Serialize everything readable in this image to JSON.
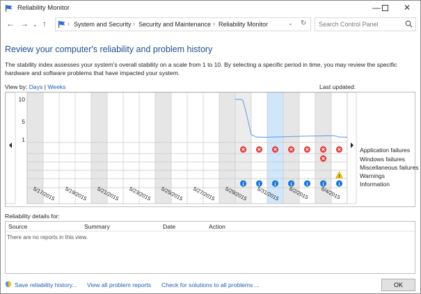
{
  "window": {
    "title": "Reliability Monitor",
    "controls": [
      "minimize",
      "maximize",
      "close"
    ]
  },
  "nav": {
    "breadcrumbs": [
      "System and Security",
      "Security and Maintenance",
      "Reliability Monitor"
    ],
    "search_placeholder": "Search Control Panel"
  },
  "page": {
    "heading": "Review your computer's reliability and problem history",
    "description": "The stability index assesses your system's overall stability on a scale from 1 to 10. By selecting a specific period in time, you may review the specific hardware and software problems that have impacted your system.",
    "view_by_label": "View by:",
    "view_days": "Days",
    "view_weeks": "Weeks",
    "view_separator": "|",
    "last_updated_label": "Last updated:"
  },
  "chart_data": {
    "type": "line",
    "y_ticks": [
      "10",
      "5",
      "1"
    ],
    "ylim": [
      1,
      10
    ],
    "dates": [
      "5/17/2015",
      "5/19/2015",
      "5/21/2015",
      "5/23/2015",
      "5/25/2015",
      "5/27/2015",
      "5/29/2015",
      "5/31/2015",
      "6/2/2015",
      "6/4/2015"
    ],
    "columns": 20,
    "selected_column": 15,
    "stability_index": [
      [
        13,
        10
      ],
      [
        13.4,
        10
      ],
      [
        13.5,
        9.6
      ],
      [
        13.7,
        6.8
      ],
      [
        14,
        2.2
      ],
      [
        14.3,
        1.6
      ],
      [
        14.8,
        1.55
      ],
      [
        15.5,
        1.6
      ],
      [
        16.5,
        1.7
      ],
      [
        17.5,
        1.8
      ],
      [
        18.5,
        1.85
      ],
      [
        19.1,
        1.9
      ],
      [
        19.3,
        1.8
      ],
      [
        19.5,
        1.6
      ],
      [
        20,
        1.55
      ]
    ],
    "legend": [
      "Application failures",
      "Windows failures",
      "Miscellaneous failures",
      "Warnings",
      "Information"
    ],
    "markers": {
      "Application failures": [
        13,
        14,
        15,
        16,
        17,
        18,
        19
      ],
      "Windows failures": [
        18
      ],
      "Warnings": [
        19
      ],
      "Information": [
        13,
        14,
        15,
        16,
        17,
        18,
        19
      ]
    }
  },
  "details": {
    "label": "Reliability details for:",
    "columns": [
      "Source",
      "Summary",
      "Date",
      "Action"
    ],
    "empty_message": "There are no reports in this view."
  },
  "footer": {
    "links": [
      "Save reliability history...",
      "View all problem reports",
      "Check for solutions to all problems ..."
    ],
    "ok_label": "OK"
  },
  "colors": {
    "heading": "#1e4e8c",
    "link": "#1a5fb4",
    "error": "#e23d3d",
    "info": "#1f77d0",
    "warning": "#f5c400",
    "selection": "#cfe6fb"
  }
}
